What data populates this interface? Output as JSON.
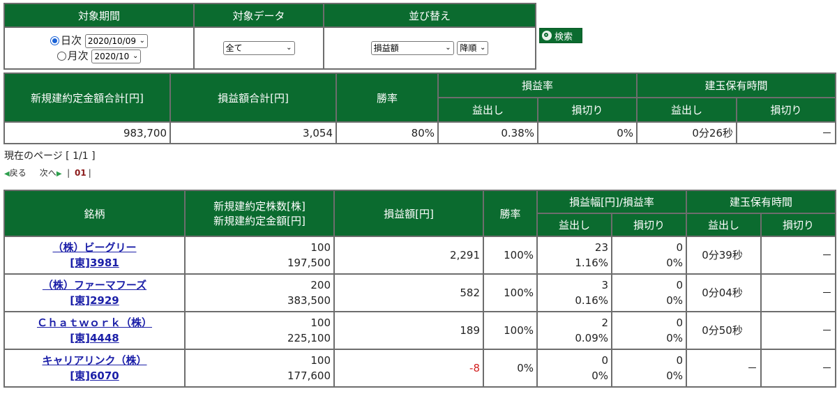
{
  "filter": {
    "headers": [
      "対象期間",
      "対象データ",
      "並び替え"
    ],
    "daily_label": "日次",
    "daily_value": "2020/10/09",
    "monthly_label": "月次",
    "monthly_value": "2020/10",
    "data_value": "全て",
    "sort_field": "損益額",
    "sort_order": "降順"
  },
  "search_button": {
    "label": "検索"
  },
  "summary": {
    "headers": {
      "total_amount": "新規建約定金額合計[円]",
      "total_pl": "損益額合計[円]",
      "win_rate": "勝率",
      "pl_rate": "損益率",
      "hold_time": "建玉保有時間",
      "profit": "益出し",
      "loss": "損切り"
    },
    "values": {
      "total_amount": "983,700",
      "total_pl": "3,054",
      "win_rate": "80%",
      "pl_rate_profit": "0.38%",
      "pl_rate_loss": "0%",
      "hold_profit": "0分26秒",
      "hold_loss": "－"
    }
  },
  "pagination": {
    "current_page": "現在のページ [ 1/1 ]",
    "back": "戻る",
    "next": "次へ",
    "page": "01"
  },
  "detail": {
    "headers": {
      "name": "銘柄",
      "shares": "新規建約定株数[株]",
      "amount": "新規建約定金額[円]",
      "pl": "損益額[円]",
      "win_rate": "勝率",
      "range": "損益幅[円]/損益率",
      "hold_time": "建玉保有時間",
      "profit": "益出し",
      "loss": "損切り"
    },
    "rows": [
      {
        "name": "（株）ビーグリー",
        "code": "[東]3981",
        "shares": "100",
        "amount": "197,500",
        "pl": "2,291",
        "win_rate": "100%",
        "profit_width": "23",
        "profit_rate": "1.16%",
        "loss_width": "0",
        "loss_rate": "0%",
        "hold_profit": "0分39秒",
        "hold_loss": "－"
      },
      {
        "name": "（株）ファーマフーズ",
        "code": "[東]2929",
        "shares": "200",
        "amount": "383,500",
        "pl": "582",
        "win_rate": "100%",
        "profit_width": "3",
        "profit_rate": "0.16%",
        "loss_width": "0",
        "loss_rate": "0%",
        "hold_profit": "0分04秒",
        "hold_loss": "－"
      },
      {
        "name": "Ｃｈａｔｗｏｒｋ（株）",
        "code": "[東]4448",
        "shares": "100",
        "amount": "225,100",
        "pl": "189",
        "win_rate": "100%",
        "profit_width": "2",
        "profit_rate": "0.09%",
        "loss_width": "0",
        "loss_rate": "0%",
        "hold_profit": "0分50秒",
        "hold_loss": "－"
      },
      {
        "name": "キャリアリンク（株）",
        "code": "[東]6070",
        "shares": "100",
        "amount": "177,600",
        "pl": "-8",
        "win_rate": "0%",
        "profit_width": "0",
        "profit_rate": "0%",
        "loss_width": "0",
        "loss_rate": "0%",
        "hold_profit": "－",
        "hold_loss": "－"
      }
    ]
  },
  "colors": {
    "header_bg": "#0b6b2f",
    "link": "#1b1fa8",
    "negative": "#d21e1e"
  }
}
